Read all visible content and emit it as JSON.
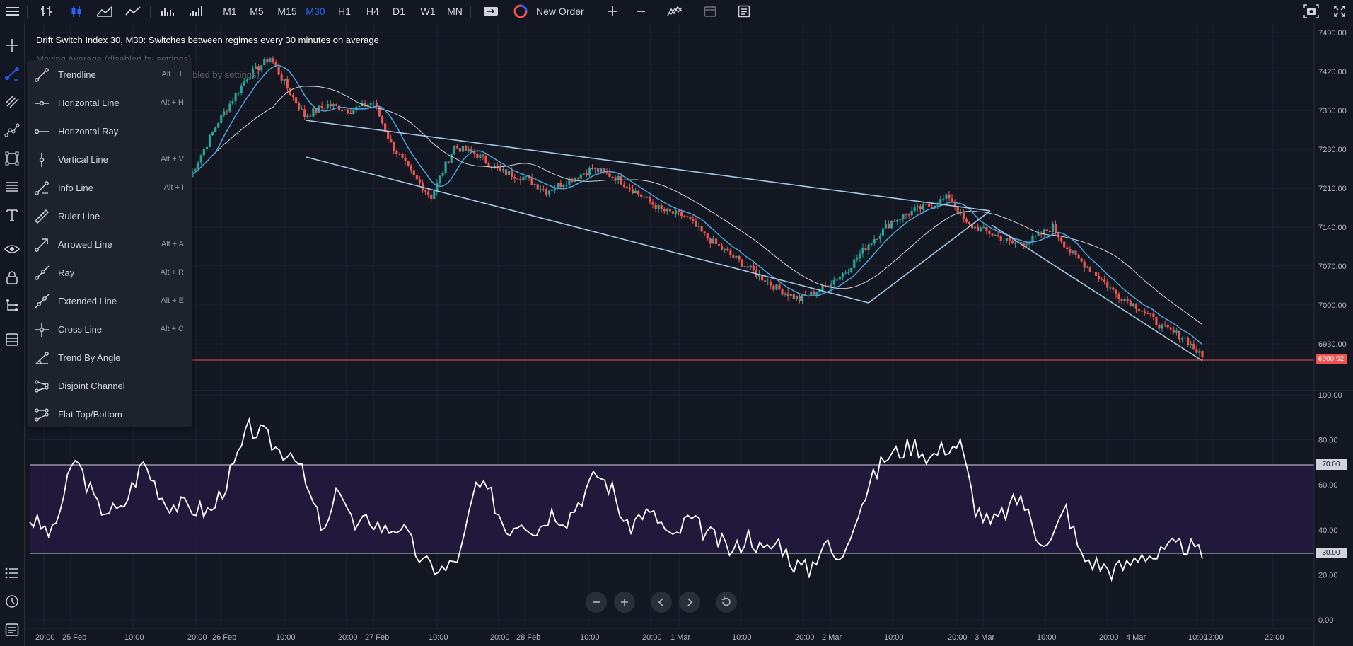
{
  "toolbar": {
    "timeframes": [
      "M1",
      "M5",
      "M15",
      "M30",
      "H1",
      "H4",
      "D1",
      "W1",
      "MN"
    ],
    "active_timeframe": "M30",
    "new_order_label": "New Order"
  },
  "chart": {
    "title": "Drift Switch Index 30, M30: Switches between regimes every 30 minutes on average",
    "indicator_1": "Moving Average (disabled by settings)",
    "indicator_2": "(disabled by settings)",
    "last_price": "6900.92",
    "price_axis": [
      "7490.00",
      "7420.00",
      "7350.00",
      "7280.00",
      "7210.00",
      "7140.00",
      "7070.00",
      "7000.00",
      "6930.00"
    ],
    "rsi_axis": [
      "100.00",
      "80.00",
      "60.00",
      "40.00",
      "20.00",
      "0.00"
    ],
    "rsi_levels": [
      "70.00",
      "30.00"
    ],
    "time_axis": [
      "20:00",
      "25 Feb",
      "10:00",
      "20:00",
      "26 Feb",
      "10:00",
      "20:00",
      "27 Feb",
      "10:00",
      "20:00",
      "28 Feb",
      "10:00",
      "20:00",
      "1 Mar",
      "10:00",
      "20:00",
      "2 Mar",
      "10:00",
      "20:00",
      "3 Mar",
      "10:00",
      "20:00",
      "4 Mar",
      "10:00",
      "12:00",
      "22:00"
    ],
    "colors": {
      "up": "#26a69a",
      "down": "#ef5350",
      "ma_fast": "#4fa3d9",
      "ma_slow": "#d1d4dc",
      "trendline": "#a6c9e3",
      "rsi": "#ffffff",
      "rsi_band": "#2a1f4a",
      "price_line": "#ef5350"
    }
  },
  "drawing_menu": {
    "items": [
      {
        "label": "Trendline",
        "shortcut": "Alt + L",
        "icon": "trendline-icon"
      },
      {
        "label": "Horizontal Line",
        "shortcut": "Alt + H",
        "icon": "horizontal-line-icon"
      },
      {
        "label": "Horizontal Ray",
        "shortcut": "",
        "icon": "horizontal-ray-icon"
      },
      {
        "label": "Vertical Line",
        "shortcut": "Alt + V",
        "icon": "vertical-line-icon"
      },
      {
        "label": "Info Line",
        "shortcut": "Alt + I",
        "icon": "info-line-icon"
      },
      {
        "label": "Ruler Line",
        "shortcut": "",
        "icon": "ruler-line-icon"
      },
      {
        "label": "Arrowed Line",
        "shortcut": "Alt + A",
        "icon": "arrowed-line-icon"
      },
      {
        "label": "Ray",
        "shortcut": "Alt + R",
        "icon": "ray-icon"
      },
      {
        "label": "Extended Line",
        "shortcut": "Alt + E",
        "icon": "extended-line-icon"
      },
      {
        "label": "Cross Line",
        "shortcut": "Alt + C",
        "icon": "cross-line-icon"
      },
      {
        "label": "Trend By Angle",
        "shortcut": "",
        "icon": "trend-by-angle-icon"
      },
      {
        "label": "Disjoint Channel",
        "shortcut": "",
        "icon": "disjoint-channel-icon"
      },
      {
        "label": "Flat Top/Bottom",
        "shortcut": "",
        "icon": "flat-top-bottom-icon"
      }
    ]
  }
}
